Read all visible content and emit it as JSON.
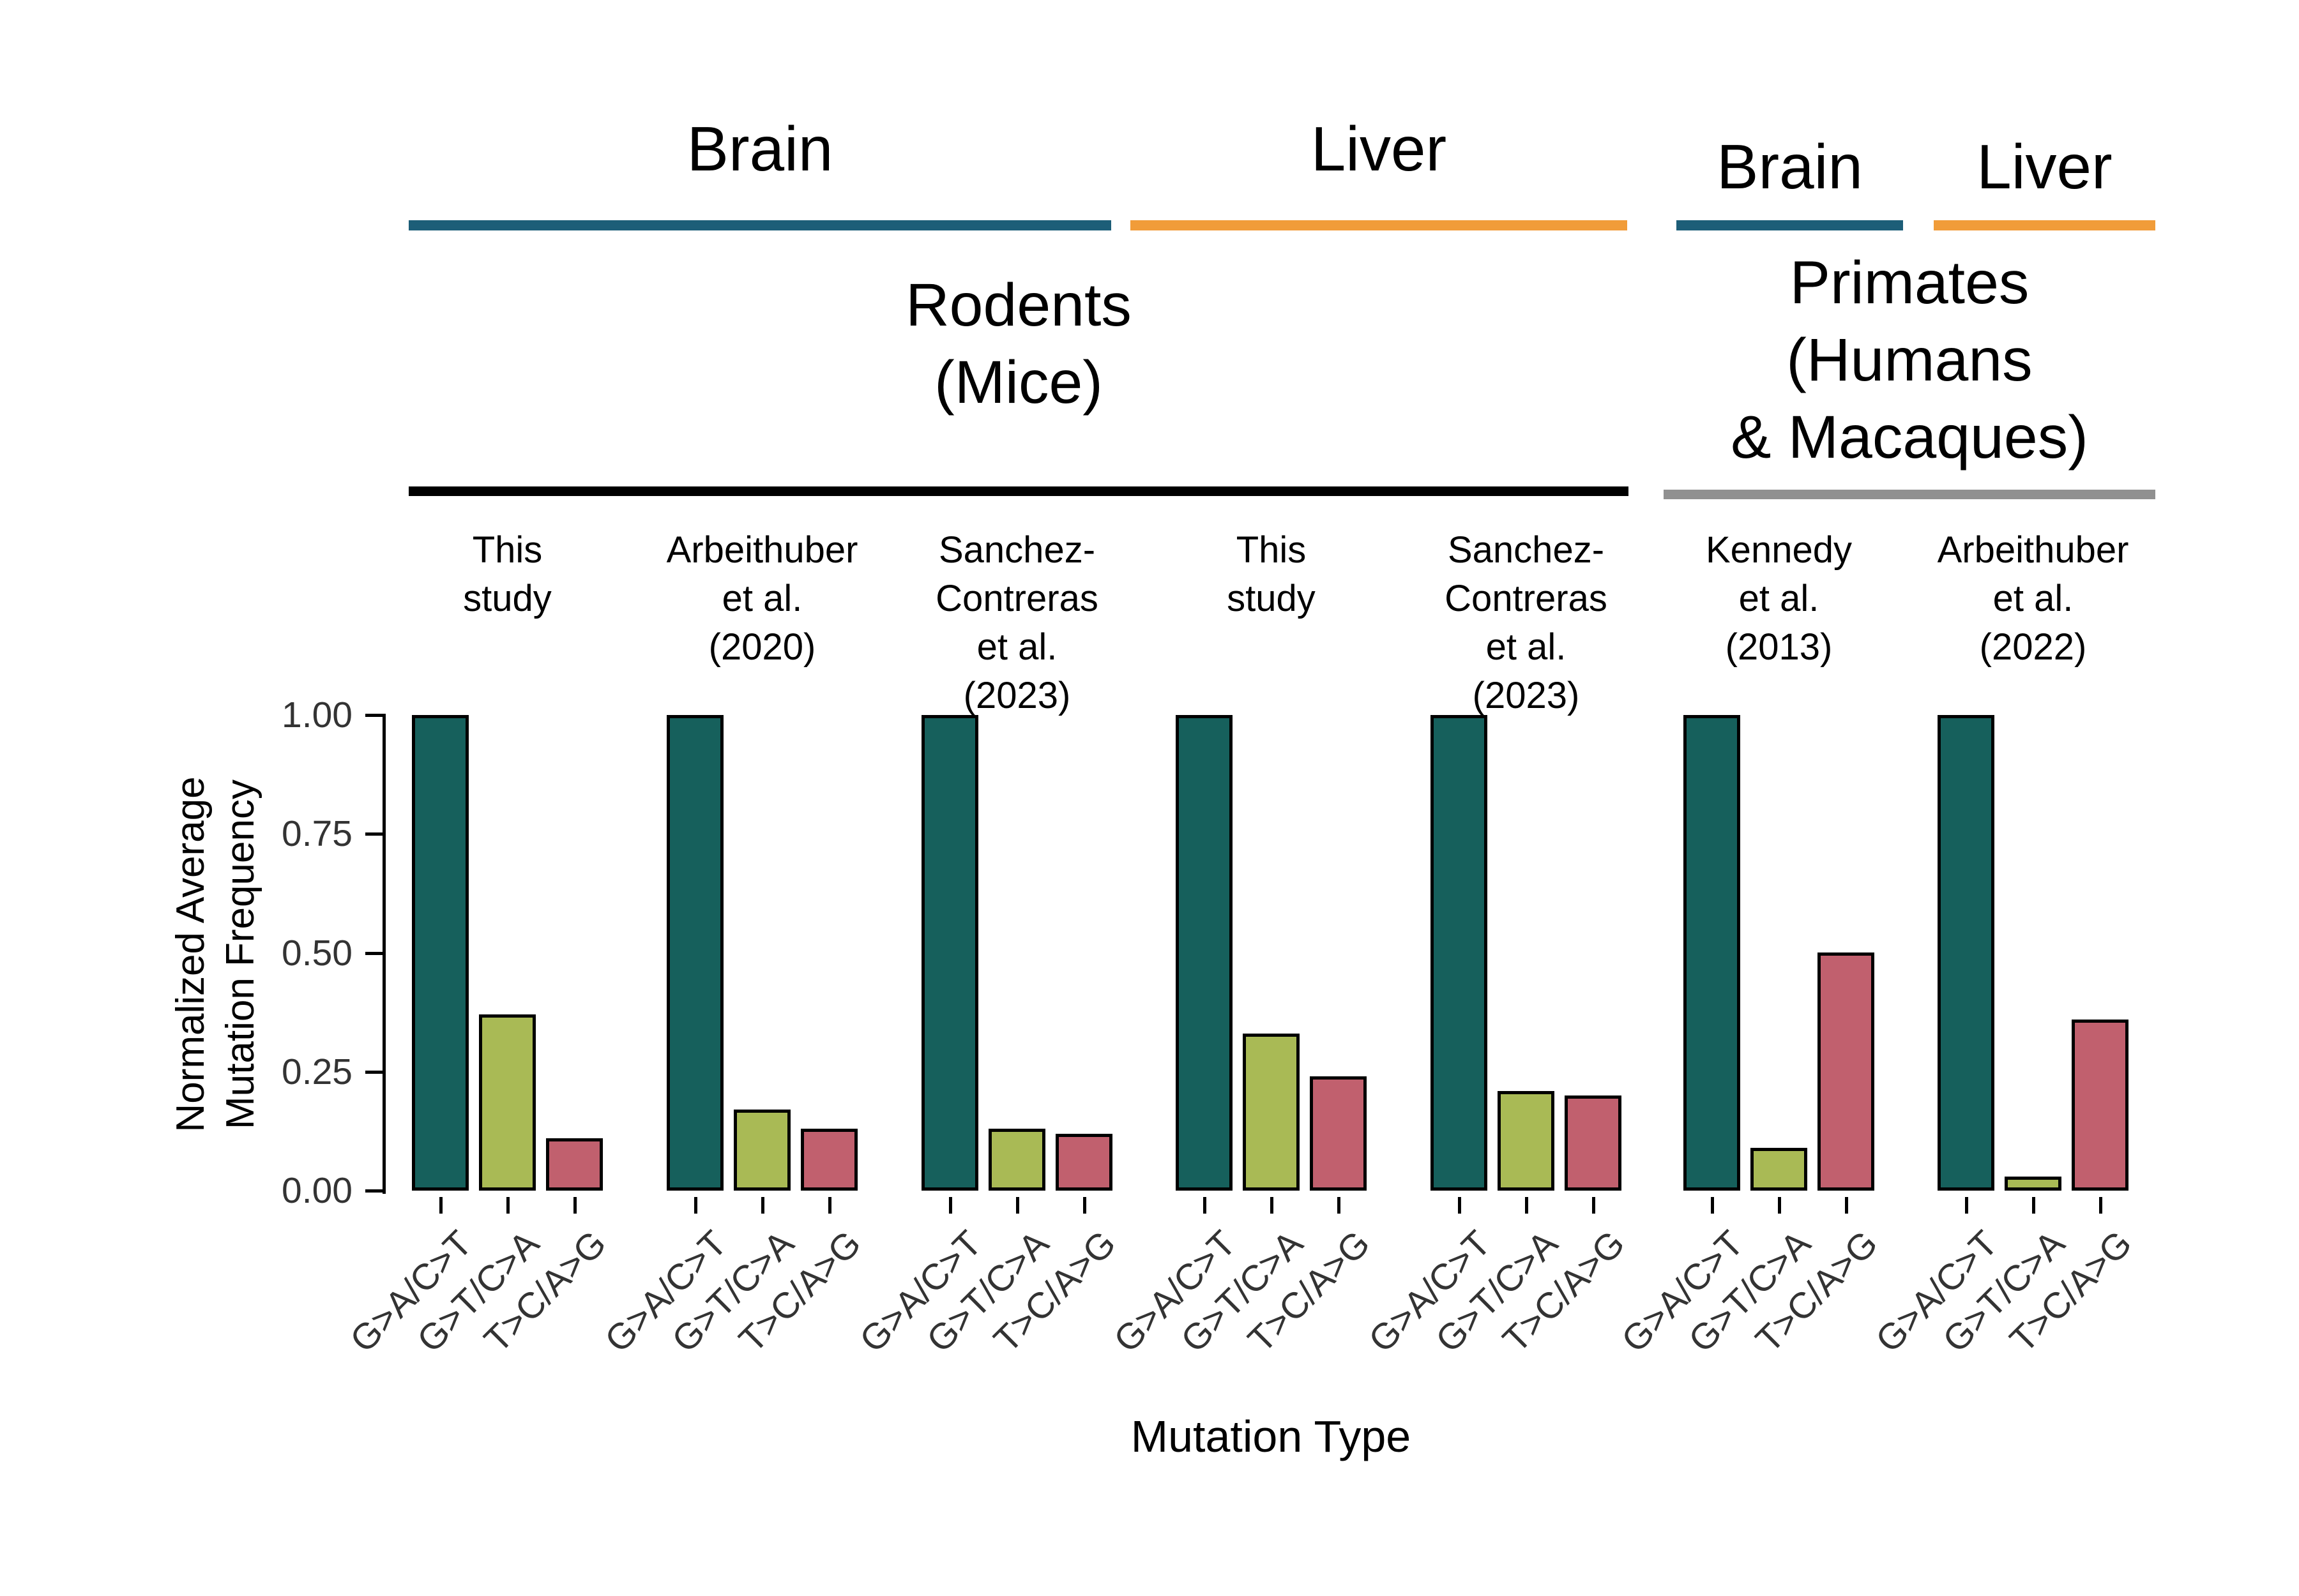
{
  "figure": {
    "tissue_groups": [
      {
        "label": "Brain",
        "color": "#1d5e78"
      },
      {
        "label": "Liver",
        "color": "#f19c39"
      },
      {
        "label": "Brain",
        "color": "#1d5e78"
      },
      {
        "label": "Liver",
        "color": "#f19c39"
      }
    ],
    "species_groups": [
      {
        "label": "Rodents (Mice)",
        "label_lines": [
          "Rodents",
          "(Mice)"
        ],
        "underline_color": "#000000"
      },
      {
        "label": "Primates (Humans & Macaques)",
        "label_lines": [
          "Primates",
          "(Humans",
          "& Macaques)"
        ],
        "underline_color": "#909090"
      }
    ]
  },
  "chart_data": {
    "type": "bar",
    "title": "",
    "xlabel": "Mutation Type",
    "ylabel": "Normalized Average Mutation Frequency",
    "ylabel_lines": [
      "Normalized Average",
      "Mutation Frequency"
    ],
    "ylim": [
      0,
      1.0
    ],
    "yticks": [
      1.0,
      0.75,
      0.5,
      0.25,
      0.0
    ],
    "ytick_labels": [
      "1.00",
      "0.75",
      "0.50",
      "0.25",
      "0.00"
    ],
    "categories": [
      "G>A/C>T",
      "G>T/C>A",
      "T>C/A>G"
    ],
    "bar_colors": [
      "#16605c",
      "#a9ba55",
      "#c1606e"
    ],
    "grid": false,
    "legend": false,
    "panels": [
      {
        "study": "This study",
        "label_lines": [
          "This",
          "study"
        ],
        "tissue": "Brain",
        "species": "Rodents (Mice)",
        "values": [
          1.0,
          0.37,
          0.11
        ]
      },
      {
        "study": "Arbeithuber et al. (2020)",
        "label_lines": [
          "Arbeithuber",
          "et al.",
          "(2020)"
        ],
        "tissue": "Brain",
        "species": "Rodents (Mice)",
        "values": [
          1.0,
          0.17,
          0.13
        ]
      },
      {
        "study": "Sanchez-Contreras et al. (2023)",
        "label_lines": [
          "Sanchez-",
          "Contreras",
          "et al.",
          "(2023)"
        ],
        "tissue": "Brain",
        "species": "Rodents (Mice)",
        "values": [
          1.0,
          0.13,
          0.12
        ]
      },
      {
        "study": "This study",
        "label_lines": [
          "This",
          "study"
        ],
        "tissue": "Liver",
        "species": "Rodents (Mice)",
        "values": [
          1.0,
          0.33,
          0.24
        ]
      },
      {
        "study": "Sanchez-Contreras et al. (2023)",
        "label_lines": [
          "Sanchez-",
          "Contreras",
          "et al.",
          "(2023)"
        ],
        "tissue": "Liver",
        "species": "Rodents (Mice)",
        "values": [
          1.0,
          0.21,
          0.2
        ]
      },
      {
        "study": "Kennedy et al. (2013)",
        "label_lines": [
          "Kennedy",
          "et al.",
          "(2013)"
        ],
        "tissue": "Brain",
        "species": "Primates (Humans & Macaques)",
        "values": [
          1.0,
          0.09,
          0.5
        ]
      },
      {
        "study": "Arbeithuber et al. (2022)",
        "label_lines": [
          "Arbeithuber",
          "et al.",
          "(2022)"
        ],
        "tissue": "Liver",
        "species": "Primates (Humans & Macaques)",
        "values": [
          1.0,
          0.03,
          0.36
        ]
      }
    ]
  }
}
